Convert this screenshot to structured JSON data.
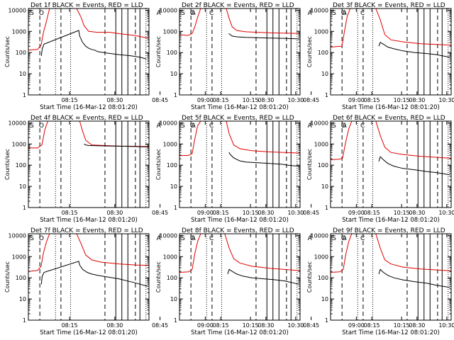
{
  "chart_data": {
    "type": "line",
    "layout": "3x3 grid of panels",
    "ylabel": "Counts/sec",
    "xlabel": "Start Time (16-Mar-12 08:01:20)",
    "yscale": "log",
    "ylim": [
      1,
      12000
    ],
    "y_ticks": [
      1,
      10,
      100,
      1000,
      10000
    ],
    "y_tick_labels": [
      "1",
      "10",
      "100",
      "1000",
      "10000"
    ],
    "xlim_min": [
      0,
      40
    ],
    "x_ticks_min": [
      13.67,
      28.67,
      43.67,
      58.67,
      73.67,
      88.67
    ],
    "x_tick_labels": [
      "08:15",
      "08:30",
      "08:45",
      "09:00",
      "10:15",
      "10:30"
    ],
    "attenuator_markers": [
      "S",
      "O",
      "A",
      "A",
      "C"
    ],
    "marker_x_min": [
      0.5,
      3.5,
      42.5,
      54.0,
      60.0
    ],
    "dashed_lines_min": [
      3.8,
      25.4,
      10.8,
      35.5
    ],
    "solid_lines_min": [
      29.0,
      31.0,
      33.0,
      37.0,
      42.0,
      44.0
    ],
    "dotted_lines_min": [
      9.0,
      14.0,
      39.0,
      46.0
    ],
    "series_legend": [
      {
        "name": "Events",
        "color": "#000000"
      },
      {
        "name": "LLD",
        "color": "#e00000"
      }
    ],
    "panels": [
      {
        "title": "Det 1f BLACK = Events, RED = LLD",
        "red": [
          [
            0,
            130
          ],
          [
            1.5,
            135
          ],
          [
            3,
            140
          ],
          [
            4.2,
            220
          ],
          [
            5,
            900
          ],
          [
            6,
            3000
          ],
          [
            7,
            12000
          ],
          [
            16,
            12000
          ],
          [
            17.5,
            4500
          ],
          [
            18.5,
            1800
          ],
          [
            20,
            1000
          ],
          [
            23,
            900
          ],
          [
            27,
            900
          ],
          [
            31,
            750
          ],
          [
            35,
            650
          ],
          [
            39,
            500
          ],
          [
            43,
            400
          ],
          [
            47,
            300
          ],
          [
            49.5,
            250
          ]
        ],
        "black": [
          [
            4.3,
            70
          ],
          [
            4.6,
            150
          ],
          [
            5.2,
            250
          ],
          [
            16.7,
            1100
          ],
          [
            17,
            600
          ],
          [
            18,
            300
          ],
          [
            19,
            200
          ],
          [
            20,
            160
          ],
          [
            21,
            140
          ],
          [
            22,
            130
          ],
          [
            23,
            110
          ],
          [
            26,
            95
          ],
          [
            30,
            80
          ],
          [
            34,
            70
          ],
          [
            37,
            60
          ],
          [
            38,
            55
          ],
          [
            39,
            50
          ]
        ]
      },
      {
        "title": "Det 2f BLACK = Events, RED = LLD",
        "red": [
          [
            0,
            700
          ],
          [
            2,
            650
          ],
          [
            3,
            650
          ],
          [
            4.2,
            800
          ],
          [
            5,
            1500
          ],
          [
            6,
            4500
          ],
          [
            7,
            12000
          ],
          [
            15.5,
            12000
          ],
          [
            16.5,
            4000
          ],
          [
            17.5,
            1600
          ],
          [
            19,
            1100
          ],
          [
            22,
            950
          ],
          [
            30,
            850
          ],
          [
            40,
            800
          ],
          [
            47,
            750
          ],
          [
            49.5,
            700
          ]
        ],
        "black": [
          [
            16.4,
            800
          ],
          [
            16.8,
            700
          ],
          [
            17.5,
            600
          ],
          [
            19,
            550
          ],
          [
            22,
            520
          ],
          [
            26,
            500
          ],
          [
            30,
            480
          ],
          [
            34,
            470
          ],
          [
            38,
            450
          ],
          [
            39.5,
            440
          ]
        ]
      },
      {
        "title": "Det 3f BLACK = Events, RED = LLD",
        "red": [
          [
            0,
            180
          ],
          [
            2,
            190
          ],
          [
            3.8,
            200
          ],
          [
            4.5,
            800
          ],
          [
            5.5,
            5000
          ],
          [
            6.5,
            12000
          ],
          [
            15,
            12000
          ],
          [
            16.5,
            3500
          ],
          [
            18,
            700
          ],
          [
            20,
            400
          ],
          [
            24,
            320
          ],
          [
            30,
            260
          ],
          [
            38,
            230
          ],
          [
            46,
            210
          ],
          [
            49.5,
            200
          ]
        ],
        "black": [
          [
            16,
            200
          ],
          [
            16.5,
            300
          ],
          [
            17.5,
            250
          ],
          [
            19,
            180
          ],
          [
            21,
            150
          ],
          [
            24,
            120
          ],
          [
            28,
            100
          ],
          [
            32,
            90
          ],
          [
            35,
            80
          ],
          [
            39.5,
            60
          ]
        ]
      },
      {
        "title": "Det 4f BLACK = Events, RED = LLD",
        "red": [
          [
            0,
            650
          ],
          [
            3,
            650
          ],
          [
            4.5,
            900
          ],
          [
            5.5,
            5000
          ],
          [
            6.5,
            12000
          ],
          [
            17,
            12000
          ],
          [
            18,
            4000
          ],
          [
            19,
            1500
          ],
          [
            21,
            900
          ],
          [
            25,
            850
          ],
          [
            30,
            800
          ],
          [
            35,
            780
          ],
          [
            40,
            750
          ],
          [
            45,
            700
          ],
          [
            49.5,
            650
          ]
        ],
        "black": [
          [
            18.5,
            1000
          ],
          [
            19,
            900
          ],
          [
            20,
            850
          ],
          [
            24,
            820
          ],
          [
            28,
            800
          ],
          [
            32,
            780
          ],
          [
            36,
            750
          ],
          [
            39.5,
            720
          ]
        ]
      },
      {
        "title": "Det 5f BLACK = Events, RED = LLD",
        "red": [
          [
            0,
            280
          ],
          [
            3,
            290
          ],
          [
            4.2,
            350
          ],
          [
            5,
            1500
          ],
          [
            6,
            7000
          ],
          [
            7,
            12000
          ],
          [
            15.5,
            12000
          ],
          [
            16.5,
            3000
          ],
          [
            18,
            900
          ],
          [
            20,
            600
          ],
          [
            24,
            480
          ],
          [
            30,
            420
          ],
          [
            38,
            380
          ],
          [
            46,
            330
          ],
          [
            49.5,
            300
          ]
        ],
        "black": [
          [
            16.4,
            400
          ],
          [
            17,
            300
          ],
          [
            18,
            220
          ],
          [
            20,
            160
          ],
          [
            22,
            140
          ],
          [
            26,
            130
          ],
          [
            30,
            120
          ],
          [
            34,
            110
          ],
          [
            36,
            100
          ],
          [
            39.5,
            90
          ]
        ]
      },
      {
        "title": "Det 6f BLACK = Events, RED = LLD",
        "red": [
          [
            0,
            180
          ],
          [
            3,
            190
          ],
          [
            4,
            220
          ],
          [
            5,
            1200
          ],
          [
            6,
            5000
          ],
          [
            7,
            12000
          ],
          [
            15,
            12000
          ],
          [
            16.5,
            2500
          ],
          [
            18,
            700
          ],
          [
            20,
            400
          ],
          [
            24,
            320
          ],
          [
            30,
            260
          ],
          [
            38,
            220
          ],
          [
            46,
            190
          ],
          [
            49.5,
            170
          ]
        ],
        "black": [
          [
            16,
            150
          ],
          [
            16.5,
            250
          ],
          [
            17.5,
            180
          ],
          [
            19,
            120
          ],
          [
            21,
            90
          ],
          [
            24,
            70
          ],
          [
            28,
            60
          ],
          [
            32,
            50
          ],
          [
            35,
            45
          ],
          [
            39.5,
            35
          ]
        ]
      },
      {
        "title": "Det 7f BLACK = Events, RED = LLD",
        "red": [
          [
            0,
            200
          ],
          [
            1.5,
            210
          ],
          [
            3,
            220
          ],
          [
            4.2,
            350
          ],
          [
            5,
            1500
          ],
          [
            6,
            5000
          ],
          [
            7,
            12000
          ],
          [
            16,
            12000
          ],
          [
            17.5,
            4000
          ],
          [
            19,
            1200
          ],
          [
            21,
            700
          ],
          [
            24,
            550
          ],
          [
            30,
            450
          ],
          [
            36,
            400
          ],
          [
            42,
            380
          ],
          [
            49.5,
            350
          ]
        ],
        "black": [
          [
            4.3,
            50
          ],
          [
            4.6,
            120
          ],
          [
            5.2,
            180
          ],
          [
            16.7,
            600
          ],
          [
            17,
            400
          ],
          [
            18,
            250
          ],
          [
            19.5,
            180
          ],
          [
            21,
            150
          ],
          [
            23,
            130
          ],
          [
            26,
            110
          ],
          [
            30,
            90
          ],
          [
            33,
            70
          ],
          [
            35,
            60
          ],
          [
            37,
            50
          ],
          [
            39.5,
            40
          ]
        ]
      },
      {
        "title": "Det 8f BLACK = Events, RED = LLD",
        "red": [
          [
            0,
            180
          ],
          [
            3,
            190
          ],
          [
            4.2,
            250
          ],
          [
            5,
            1200
          ],
          [
            6,
            5000
          ],
          [
            7,
            12000
          ],
          [
            15,
            12000
          ],
          [
            16.5,
            2500
          ],
          [
            18,
            800
          ],
          [
            20,
            500
          ],
          [
            24,
            350
          ],
          [
            30,
            280
          ],
          [
            38,
            230
          ],
          [
            46,
            200
          ],
          [
            49.5,
            180
          ]
        ],
        "black": [
          [
            16,
            150
          ],
          [
            16.5,
            250
          ],
          [
            17.5,
            200
          ],
          [
            19,
            150
          ],
          [
            21,
            120
          ],
          [
            24,
            100
          ],
          [
            28,
            90
          ],
          [
            32,
            80
          ],
          [
            35,
            70
          ],
          [
            39.5,
            50
          ]
        ]
      },
      {
        "title": "Det 9f BLACK = Events, RED = LLD",
        "red": [
          [
            0,
            180
          ],
          [
            3,
            190
          ],
          [
            4.2,
            250
          ],
          [
            5,
            1200
          ],
          [
            6,
            5000
          ],
          [
            7,
            12000
          ],
          [
            15,
            12000
          ],
          [
            16.5,
            2500
          ],
          [
            18,
            700
          ],
          [
            20,
            450
          ],
          [
            24,
            320
          ],
          [
            30,
            260
          ],
          [
            38,
            220
          ],
          [
            46,
            190
          ],
          [
            49.5,
            170
          ]
        ],
        "black": [
          [
            16,
            150
          ],
          [
            16.5,
            250
          ],
          [
            17.5,
            180
          ],
          [
            19,
            130
          ],
          [
            21,
            100
          ],
          [
            24,
            80
          ],
          [
            28,
            65
          ],
          [
            32,
            55
          ],
          [
            35,
            45
          ],
          [
            39.5,
            35
          ]
        ]
      }
    ]
  }
}
